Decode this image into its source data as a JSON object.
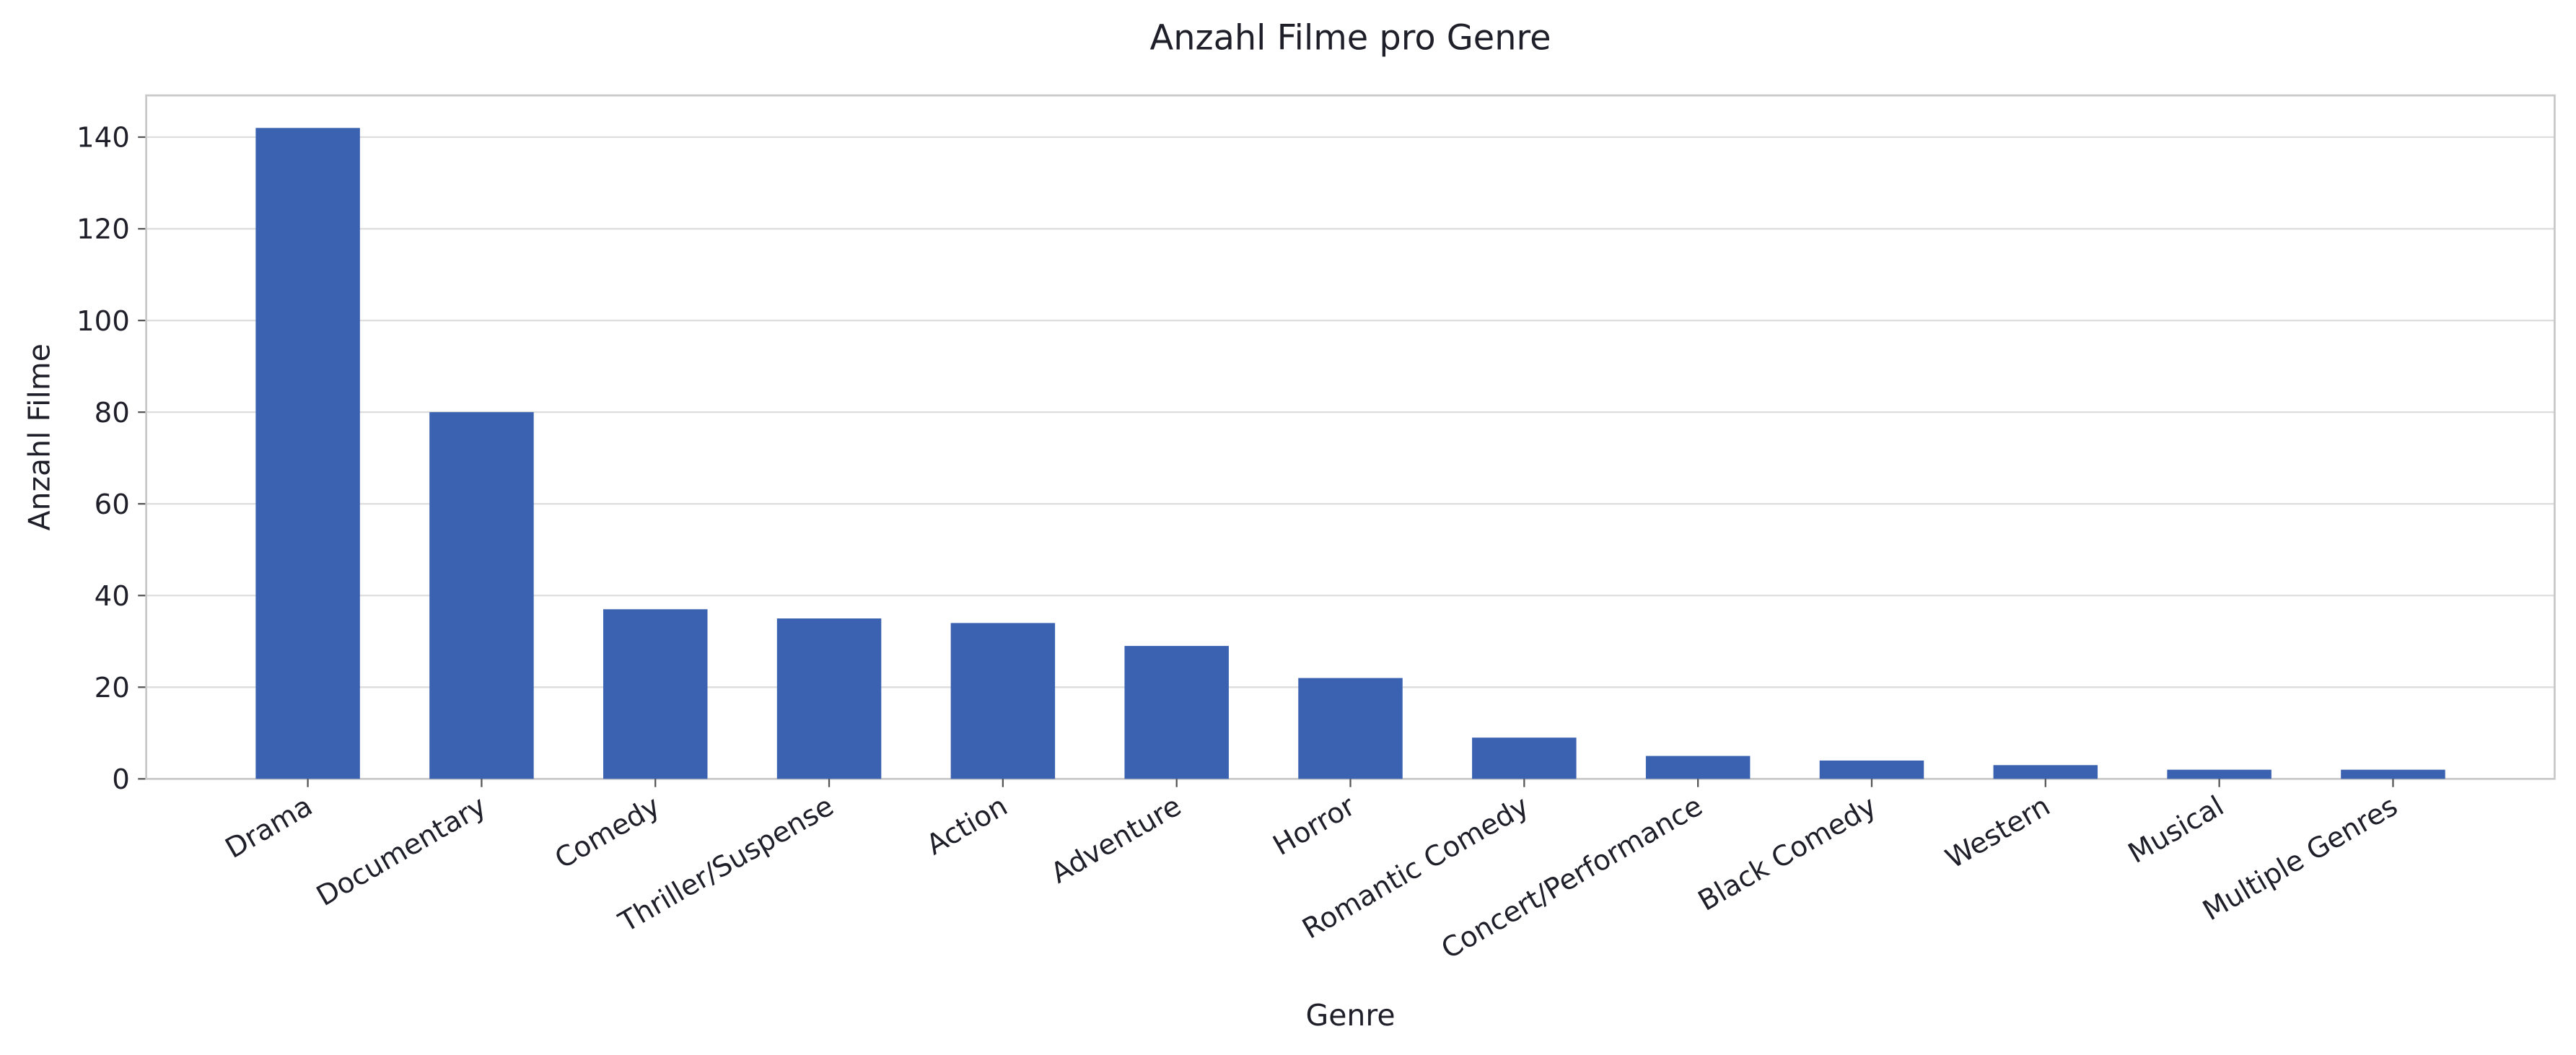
{
  "chart_data": {
    "type": "bar",
    "title": "Anzahl Filme pro Genre",
    "x_label": "Genre",
    "y_label": "Anzahl Filme",
    "categories": [
      "Drama",
      "Documentary",
      "Comedy",
      "Thriller/Suspense",
      "Action",
      "Adventure",
      "Horror",
      "Romantic Comedy",
      "Concert/Performance",
      "Black Comedy",
      "Western",
      "Musical",
      "Multiple Genres"
    ],
    "values": [
      142,
      80,
      37,
      35,
      34,
      29,
      22,
      9,
      5,
      4,
      3,
      2,
      2
    ],
    "color": "#3b62b0",
    "ylim": [
      0,
      149.1
    ],
    "yticks": [
      0,
      20,
      40,
      60,
      80,
      100,
      120,
      140
    ],
    "grid": true
  }
}
